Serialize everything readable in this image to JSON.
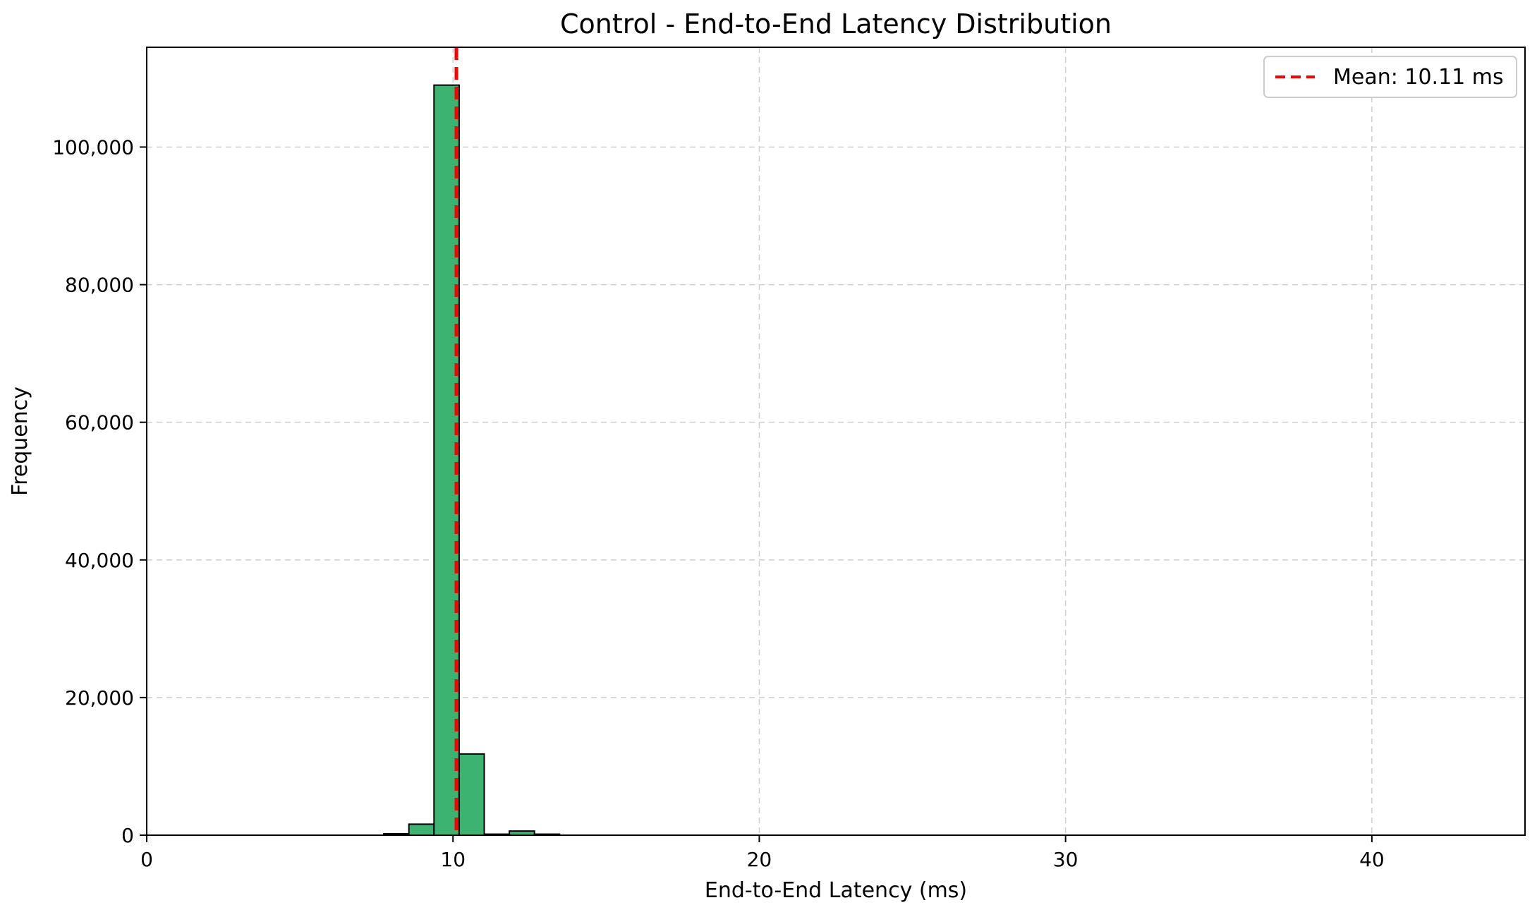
{
  "chart_data": {
    "type": "bar",
    "title": "Control - End-to-End Latency Distribution",
    "xlabel": "End-to-End Latency (ms)",
    "ylabel": "Frequency",
    "xlim": [
      0,
      45
    ],
    "ylim": [
      0,
      114500
    ],
    "xticks": [
      0,
      10,
      20,
      30,
      40
    ],
    "xtick_labels": [
      "0",
      "10",
      "20",
      "30",
      "40"
    ],
    "yticks": [
      0,
      20000,
      40000,
      60000,
      80000,
      100000
    ],
    "ytick_labels": [
      "0",
      "20,000",
      "40,000",
      "60,000",
      "80,000",
      "100,000"
    ],
    "grid": true,
    "bin_edges": [
      2.0,
      2.82,
      3.64,
      4.46,
      5.28,
      6.1,
      6.92,
      7.74,
      8.56,
      9.38,
      10.2,
      11.02,
      11.84,
      12.66,
      13.48,
      14.3,
      15.12,
      15.94,
      16.76,
      17.58,
      18.4,
      19.22,
      20.04,
      20.86,
      21.68,
      22.5,
      23.32,
      24.14,
      24.96,
      25.78,
      26.6,
      27.42,
      28.24,
      29.06,
      29.88,
      30.7,
      31.52,
      32.34,
      33.16,
      33.98,
      34.8,
      35.62,
      36.44,
      37.26,
      38.08,
      38.9,
      39.72,
      40.54,
      41.36,
      42.18,
      43.0
    ],
    "series": [
      {
        "type": "histogram",
        "color": "#3cb371",
        "edgecolor": "#000000",
        "values": [
          0,
          0,
          0,
          0,
          0,
          0,
          0,
          200,
          1600,
          109000,
          11800,
          150,
          600,
          150,
          0,
          0,
          0,
          0,
          0,
          0,
          0,
          0,
          0,
          0,
          0,
          0,
          0,
          0,
          0,
          0,
          0,
          0,
          0,
          0,
          0,
          0,
          0,
          0,
          0,
          0,
          0,
          0,
          0,
          0,
          0,
          0,
          0,
          0,
          0,
          0
        ]
      }
    ],
    "mean_line": {
      "value": 10.11,
      "color": "#ff0000",
      "style": "dashed",
      "label": "Mean: 10.11 ms"
    },
    "legend_position": "top-right"
  }
}
